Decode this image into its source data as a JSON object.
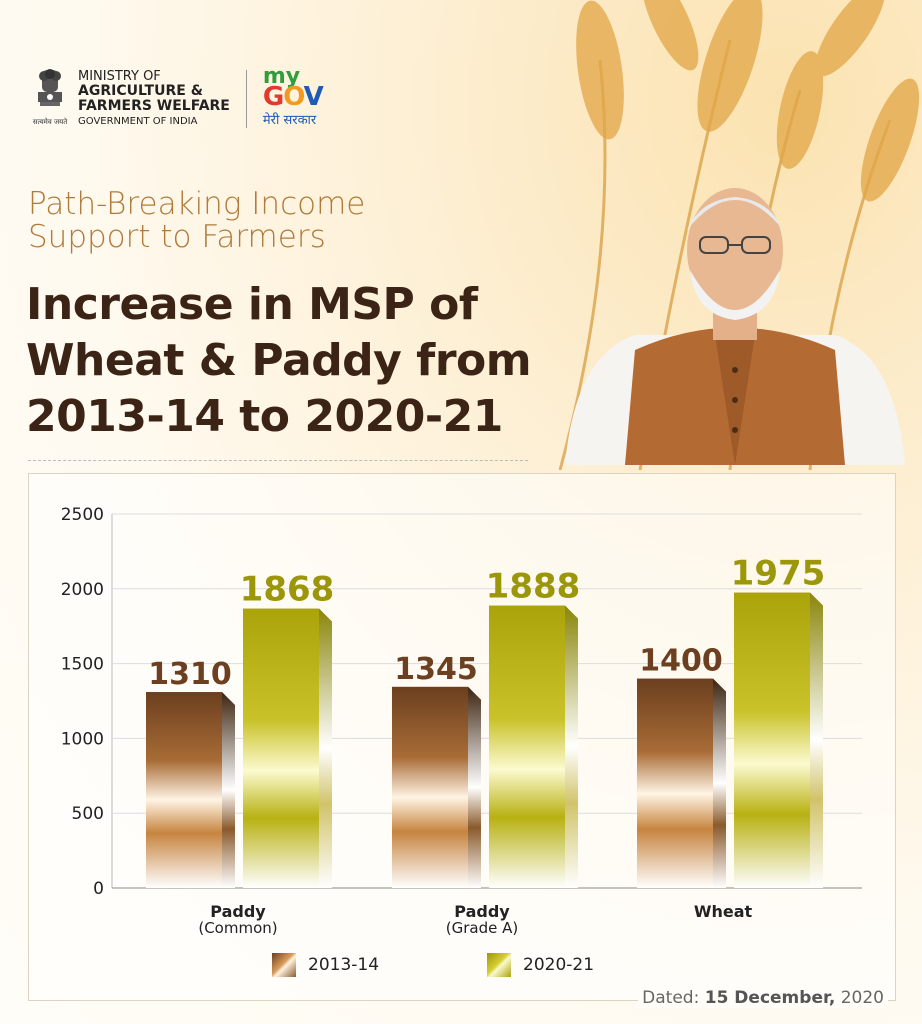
{
  "header": {
    "emblem_caption": "सत्यमेव जयते",
    "ministry_line1": "MINISTRY OF",
    "ministry_line2": "AGRICULTURE &",
    "ministry_line3": "FARMERS WELFARE",
    "ministry_line4": "GOVERNMENT OF INDIA",
    "mygov_my": "my",
    "mygov_gov": "GOV",
    "mygov_hindi": "मेरी सरकार"
  },
  "subtitle_line1": "Path-Breaking Income",
  "subtitle_line2": "Support to Farmers",
  "title_line1": "Increase in MSP of",
  "title_line2": "Wheat & Paddy from",
  "title_line3": "2013-14 to 2020-21",
  "dated_label": "Dated:",
  "dated_value": "15 December,",
  "dated_year": "2020",
  "colors": {
    "series_2013": "#8a5a2c",
    "series_2020": "#b5b00a",
    "title": "#3b2416",
    "subtitle": "#b07a3a"
  },
  "chart_data": {
    "type": "bar",
    "categories": [
      "Paddy (Common)",
      "Paddy (Grade A)",
      "Wheat"
    ],
    "category_labels": [
      {
        "main": "Paddy",
        "sub": "(Common)"
      },
      {
        "main": "Paddy",
        "sub": "(Grade A)"
      },
      {
        "main": "Wheat",
        "sub": ""
      }
    ],
    "series": [
      {
        "name": "2013-14",
        "values": [
          1310,
          1345,
          1400
        ]
      },
      {
        "name": "2020-21",
        "values": [
          1868,
          1888,
          1975
        ]
      }
    ],
    "ylim": [
      0,
      2500
    ],
    "yticks": [
      "0",
      "500",
      "1000",
      "1500",
      "2000",
      "2500"
    ],
    "grid": true,
    "legend": "bottom"
  }
}
